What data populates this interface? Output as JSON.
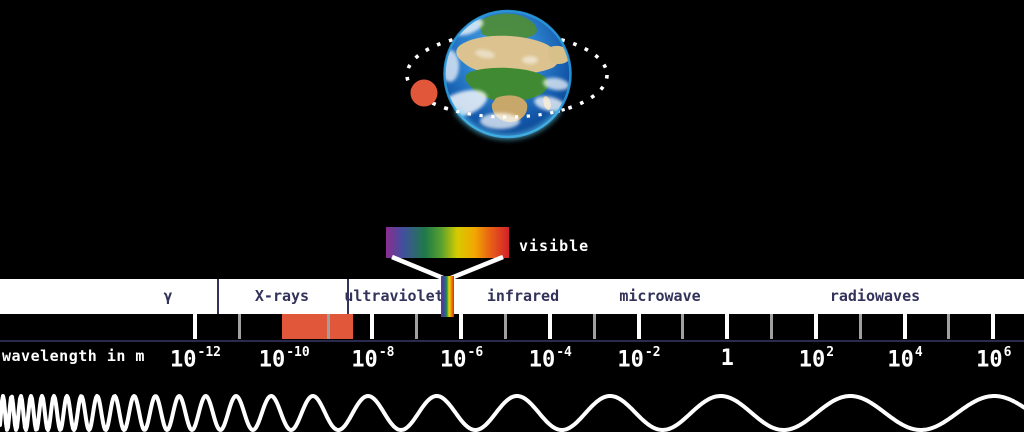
{
  "earth_scene": {
    "earth_icon": "earth-photo-africa",
    "orbit_icon": "dotted-orbit-ellipse",
    "satellite_icon": "orange-satellite-dot",
    "satellite_color": "#e0573a"
  },
  "visible_callout": {
    "label": "visible",
    "bar_colors": [
      "#8b2d90",
      "#41509f",
      "#1f7a48",
      "#58a030",
      "#d6cb00",
      "#f2a800",
      "#e86414",
      "#d3202a"
    ]
  },
  "bands": [
    {
      "id": "gamma",
      "label": "γ"
    },
    {
      "id": "xrays",
      "label": "X-rays"
    },
    {
      "id": "ultraviolet",
      "label": "ultraviolet"
    },
    {
      "id": "infrared",
      "label": "infrared"
    },
    {
      "id": "microwave",
      "label": "microwave"
    },
    {
      "id": "radiowaves",
      "label": "radiowaves"
    }
  ],
  "scale": {
    "axis_label": "wavelength in m",
    "tick_labels": [
      {
        "base": "10",
        "exp": "-12"
      },
      {
        "base": "10",
        "exp": "-10"
      },
      {
        "base": "10",
        "exp": "-8"
      },
      {
        "base": "10",
        "exp": "-6"
      },
      {
        "base": "10",
        "exp": "-4"
      },
      {
        "base": "10",
        "exp": "-2"
      },
      {
        "base": "1",
        "exp": ""
      },
      {
        "base": "10",
        "exp": "2"
      },
      {
        "base": "10",
        "exp": "4"
      },
      {
        "base": "10",
        "exp": "6"
      }
    ],
    "highlight_color": "#e0573a"
  },
  "colors": {
    "background": "#000000",
    "band_fill": "#ffffff",
    "band_text": "#32325b",
    "tick_gray": "#a0a0a0",
    "underline_navy": "#2a2a4e",
    "wave": "#ffffff"
  }
}
